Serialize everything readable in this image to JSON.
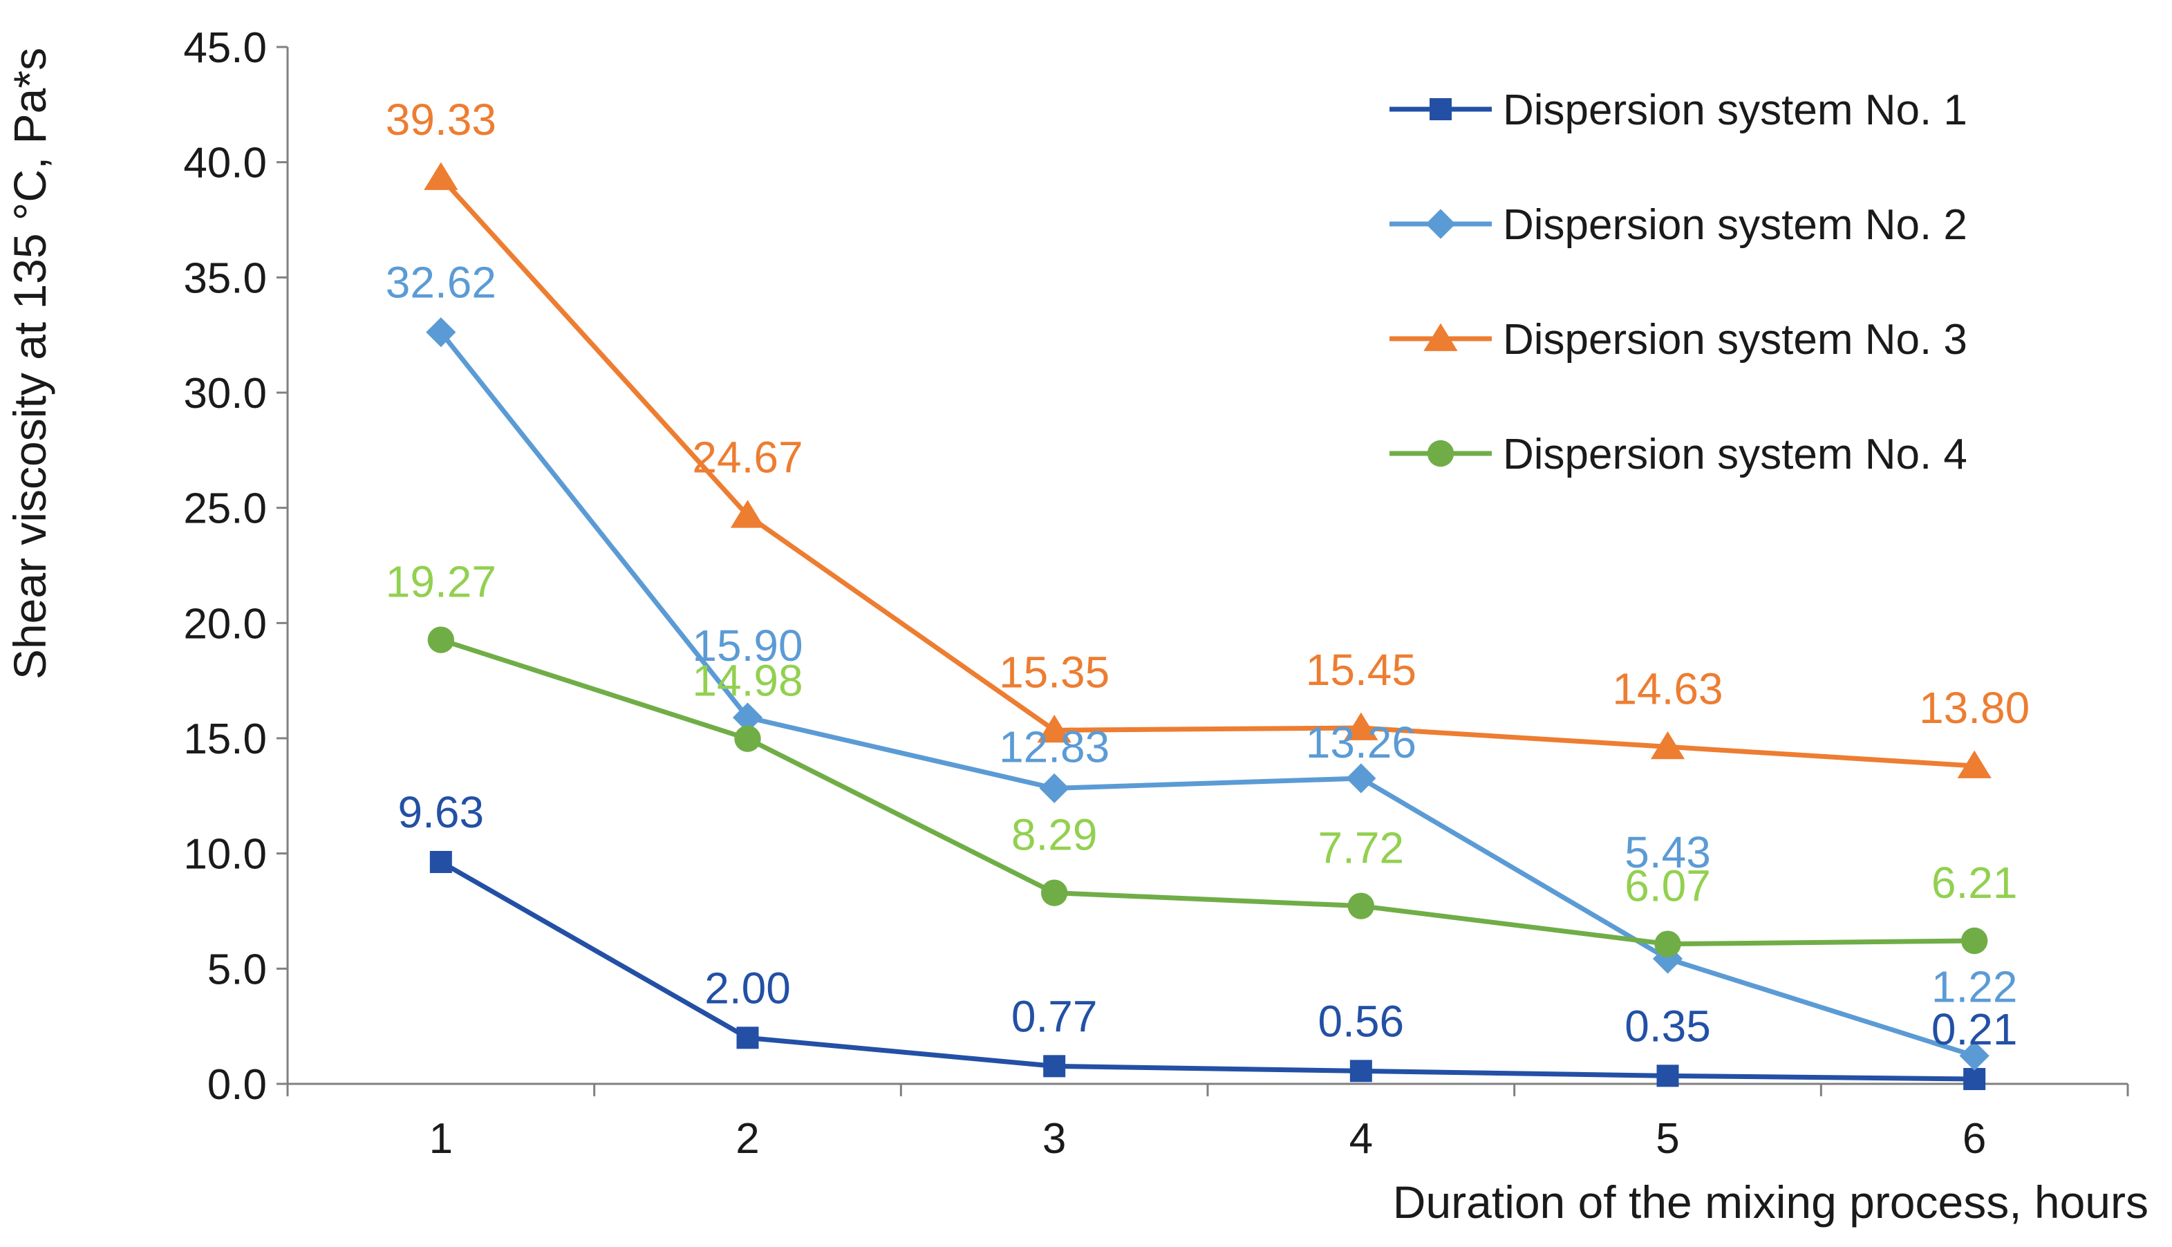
{
  "chart_data": {
    "type": "line",
    "title": "",
    "xlabel": "Duration of the mixing process, hours",
    "ylabel": "Shear viscosity at 135 °C, Pa*s",
    "x": [
      1,
      2,
      3,
      4,
      5,
      6
    ],
    "x_tick_labels": [
      "1",
      "2",
      "3",
      "4",
      "5",
      "6"
    ],
    "xlim": [
      0.5,
      6.5
    ],
    "ylim": [
      0,
      45
    ],
    "y_tick_values": [
      0,
      5,
      10,
      15,
      20,
      25,
      30,
      35,
      40,
      45
    ],
    "y_tick_labels": [
      "0.0",
      "5.0",
      "10.0",
      "15.0",
      "20.0",
      "25.0",
      "30.0",
      "35.0",
      "40.0",
      "45.0"
    ],
    "grid": false,
    "legend_position": "top-right",
    "series": [
      {
        "name": "Dispersion system No. 1",
        "color": "#2350A5",
        "marker": "square",
        "values": [
          9.63,
          2.0,
          0.77,
          0.56,
          0.35,
          0.21
        ],
        "labels": [
          "9.63",
          "2.00",
          "0.77",
          "0.56",
          "0.35",
          "0.21"
        ]
      },
      {
        "name": "Dispersion system No. 2",
        "color": "#5B9BD5",
        "marker": "diamond",
        "values": [
          32.62,
          15.9,
          12.83,
          13.26,
          5.43,
          1.22
        ],
        "labels": [
          "32.62",
          "15.90",
          "12.83",
          "13.26",
          "5.43",
          "1.22"
        ]
      },
      {
        "name": "Dispersion system No. 3",
        "color": "#ED7D31",
        "marker": "triangle",
        "values": [
          39.33,
          24.67,
          15.35,
          15.45,
          14.63,
          13.8
        ],
        "labels": [
          "39.33",
          "24.67",
          "15.35",
          "15.45",
          "14.63",
          "13.80"
        ]
      },
      {
        "name": "Dispersion system No. 4",
        "color": "#70AD47",
        "label_color": "#92D050",
        "marker": "circle",
        "values": [
          19.27,
          14.98,
          8.29,
          7.72,
          6.07,
          6.21
        ],
        "labels": [
          "19.27",
          "14.98",
          "8.29",
          "7.72",
          "6.07",
          "6.21"
        ]
      }
    ]
  }
}
